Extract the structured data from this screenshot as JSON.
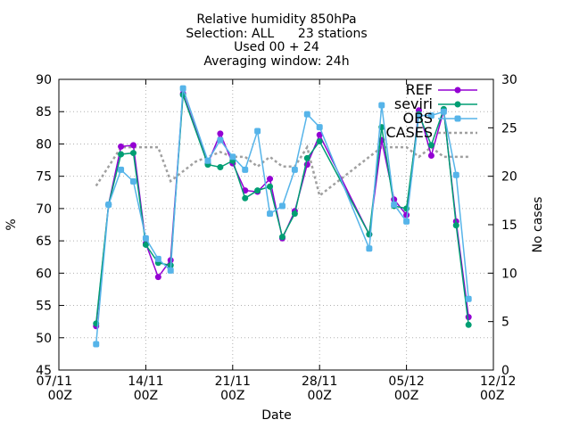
{
  "chart_data": {
    "type": "line",
    "title": [
      "Relative humidity 850hPa",
      "Selection: ALL      23 stations",
      "Used 00 + 24",
      "Averaging window: 24h"
    ],
    "xlabel": "Date",
    "ylabel": "%",
    "y2label": "No cases",
    "x_range": [
      "2022-11-07T00:00",
      "2022-12-12T00:00"
    ],
    "ylim": [
      45,
      90
    ],
    "y2lim": [
      0,
      30
    ],
    "x_ticks": [
      {
        "line1": "07/11",
        "line2": "00Z",
        "x": "2022-11-07T00:00"
      },
      {
        "line1": "14/11",
        "line2": "00Z",
        "x": "2022-11-14T00:00"
      },
      {
        "line1": "21/11",
        "line2": "00Z",
        "x": "2022-11-21T00:00"
      },
      {
        "line1": "28/11",
        "line2": "00Z",
        "x": "2022-11-28T00:00"
      },
      {
        "line1": "05/12",
        "line2": "00Z",
        "x": "2022-12-05T00:00"
      },
      {
        "line1": "12/12",
        "line2": "00Z",
        "x": "2022-12-12T00:00"
      }
    ],
    "y_ticks": [
      45,
      50,
      55,
      60,
      65,
      70,
      75,
      80,
      85,
      90
    ],
    "y2_ticks": [
      0,
      5,
      10,
      15,
      20,
      25,
      30
    ],
    "legend_position": "top-right",
    "series": [
      {
        "name": "REF",
        "color": "#9400d3",
        "axis": "left",
        "style": "line-points",
        "marker": "circle",
        "points": [
          [
            "2022-11-10T00:00",
            51.8
          ],
          [
            "2022-11-11T00:00",
            70.6
          ],
          [
            "2022-11-12T00:00",
            79.6
          ],
          [
            "2022-11-13T00:00",
            79.8
          ],
          [
            "2022-11-14T00:00",
            64.6
          ],
          [
            "2022-11-15T00:00",
            59.4
          ],
          [
            "2022-11-16T00:00",
            62.0
          ],
          [
            "2022-11-17T00:00",
            87.8
          ],
          [
            "2022-11-19T00:00",
            77.0
          ],
          [
            "2022-11-20T00:00",
            81.6
          ],
          [
            "2022-11-21T00:00",
            77.0
          ],
          [
            "2022-11-22T00:00",
            72.8
          ],
          [
            "2022-11-23T00:00",
            72.6
          ],
          [
            "2022-11-24T00:00",
            74.6
          ],
          [
            "2022-11-25T00:00",
            65.4
          ],
          [
            "2022-11-26T00:00",
            69.6
          ],
          [
            "2022-11-27T00:00",
            76.8
          ],
          [
            "2022-11-28T00:00",
            81.4
          ],
          [
            "2022-12-02T00:00",
            66.0
          ],
          [
            "2022-12-03T00:00",
            80.6
          ],
          [
            "2022-12-04T00:00",
            71.4
          ],
          [
            "2022-12-05T00:00",
            69.0
          ],
          [
            "2022-12-06T00:00",
            85.2
          ],
          [
            "2022-12-07T00:00",
            78.2
          ],
          [
            "2022-12-08T00:00",
            85.2
          ],
          [
            "2022-12-09T00:00",
            68.0
          ],
          [
            "2022-12-10T00:00",
            53.2
          ]
        ]
      },
      {
        "name": "seviri",
        "color": "#009e73",
        "axis": "left",
        "style": "line-points",
        "marker": "circle",
        "points": [
          [
            "2022-11-10T00:00",
            52.2
          ],
          [
            "2022-11-11T00:00",
            70.6
          ],
          [
            "2022-11-12T00:00",
            78.4
          ],
          [
            "2022-11-13T00:00",
            78.6
          ],
          [
            "2022-11-14T00:00",
            64.4
          ],
          [
            "2022-11-15T00:00",
            61.6
          ],
          [
            "2022-11-16T00:00",
            61.2
          ],
          [
            "2022-11-17T00:00",
            87.6
          ],
          [
            "2022-11-19T00:00",
            76.8
          ],
          [
            "2022-11-20T00:00",
            76.4
          ],
          [
            "2022-11-21T00:00",
            77.4
          ],
          [
            "2022-11-22T00:00",
            71.6
          ],
          [
            "2022-11-23T00:00",
            72.8
          ],
          [
            "2022-11-24T00:00",
            73.4
          ],
          [
            "2022-11-25T00:00",
            65.6
          ],
          [
            "2022-11-26T00:00",
            69.2
          ],
          [
            "2022-11-27T00:00",
            77.8
          ],
          [
            "2022-11-28T00:00",
            80.4
          ],
          [
            "2022-12-02T00:00",
            66.0
          ],
          [
            "2022-12-03T00:00",
            82.6
          ],
          [
            "2022-12-04T00:00",
            70.4
          ],
          [
            "2022-12-05T00:00",
            70.0
          ],
          [
            "2022-12-06T00:00",
            84.6
          ],
          [
            "2022-12-07T00:00",
            79.8
          ],
          [
            "2022-12-08T00:00",
            85.4
          ],
          [
            "2022-12-09T00:00",
            67.4
          ],
          [
            "2022-12-10T00:00",
            52.0
          ]
        ]
      },
      {
        "name": "OBS",
        "color": "#56b4e9",
        "axis": "left",
        "style": "line-points",
        "marker": "square",
        "points": [
          [
            "2022-11-10T00:00",
            49.0
          ],
          [
            "2022-11-11T00:00",
            70.6
          ],
          [
            "2022-11-12T00:00",
            76.0
          ],
          [
            "2022-11-13T00:00",
            74.2
          ],
          [
            "2022-11-14T00:00",
            65.4
          ],
          [
            "2022-11-15T00:00",
            62.2
          ],
          [
            "2022-11-16T00:00",
            60.4
          ],
          [
            "2022-11-17T00:00",
            88.6
          ],
          [
            "2022-11-19T00:00",
            77.4
          ],
          [
            "2022-11-20T00:00",
            80.6
          ],
          [
            "2022-11-21T00:00",
            78.0
          ],
          [
            "2022-11-22T00:00",
            76.0
          ],
          [
            "2022-11-23T00:00",
            82.0
          ],
          [
            "2022-11-24T00:00",
            69.2
          ],
          [
            "2022-11-25T00:00",
            70.4
          ],
          [
            "2022-11-26T00:00",
            76.0
          ],
          [
            "2022-11-27T00:00",
            84.6
          ],
          [
            "2022-11-28T00:00",
            82.6
          ],
          [
            "2022-12-02T00:00",
            63.8
          ],
          [
            "2022-12-03T00:00",
            86.0
          ],
          [
            "2022-12-04T00:00",
            70.6
          ],
          [
            "2022-12-05T00:00",
            68.0
          ],
          [
            "2022-12-06T00:00",
            84.4
          ],
          [
            "2022-12-07T00:00",
            84.4
          ],
          [
            "2022-12-08T00:00",
            85.0
          ],
          [
            "2022-12-09T00:00",
            75.2
          ],
          [
            "2022-12-10T00:00",
            56.0
          ]
        ]
      },
      {
        "name": "CASES",
        "color": "#a0a0a0",
        "axis": "right",
        "style": "dashed",
        "points": [
          [
            "2022-11-10T00:00",
            19.0
          ],
          [
            "2022-11-11T00:00",
            21.0
          ],
          [
            "2022-11-12T00:00",
            23.0
          ],
          [
            "2022-11-13T00:00",
            23.0
          ],
          [
            "2022-11-14T00:00",
            23.0
          ],
          [
            "2022-11-15T00:00",
            23.0
          ],
          [
            "2022-11-16T00:00",
            19.5
          ],
          [
            "2022-11-17T00:00",
            20.5
          ],
          [
            "2022-11-18T00:00",
            21.5
          ],
          [
            "2022-11-19T00:00",
            22.0
          ],
          [
            "2022-11-20T00:00",
            22.5
          ],
          [
            "2022-11-21T00:00",
            22.0
          ],
          [
            "2022-11-22T00:00",
            22.0
          ],
          [
            "2022-11-23T00:00",
            21.0
          ],
          [
            "2022-11-24T00:00",
            22.0
          ],
          [
            "2022-11-25T00:00",
            21.0
          ],
          [
            "2022-11-26T00:00",
            21.0
          ],
          [
            "2022-11-27T00:00",
            23.0
          ],
          [
            "2022-11-28T00:00",
            18.0
          ],
          [
            "2022-11-29T00:00",
            19.0
          ],
          [
            "2022-11-30T00:00",
            20.0
          ],
          [
            "2022-12-01T00:00",
            21.0
          ],
          [
            "2022-12-02T00:00",
            22.0
          ],
          [
            "2022-12-03T00:00",
            23.0
          ],
          [
            "2022-12-04T00:00",
            23.0
          ],
          [
            "2022-12-05T00:00",
            23.0
          ],
          [
            "2022-12-06T00:00",
            22.0
          ],
          [
            "2022-12-07T00:00",
            23.0
          ],
          [
            "2022-12-08T00:00",
            22.0
          ],
          [
            "2022-12-09T00:00",
            22.0
          ],
          [
            "2022-12-10T00:00",
            22.0
          ]
        ]
      }
    ]
  }
}
